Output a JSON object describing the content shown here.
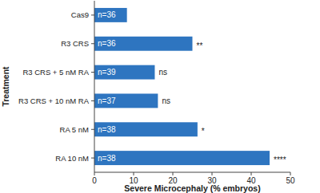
{
  "chart_data": {
    "type": "bar",
    "orientation": "horizontal",
    "x_label": "Severe Microcephaly (% embryos)",
    "y_label": "Treatment",
    "categories": [
      "Cas9",
      "R3 CRS",
      "R3 CRS + 5 nM RA",
      "R3 CRS + 10 nM RA",
      "RA 5 nM",
      "RA 10 nM"
    ],
    "values": [
      8.3,
      25.0,
      15.4,
      16.2,
      26.3,
      44.7
    ],
    "n_labels": [
      "n=36",
      "n=36",
      "n=39",
      "n=37",
      "n=38",
      "n=38"
    ],
    "significance_labels": [
      null,
      "**",
      "ns",
      "ns",
      "*",
      "****"
    ],
    "color": "#2e75c0",
    "xlim": [
      0,
      50
    ],
    "xticks": [
      0,
      10,
      20,
      30,
      40,
      50
    ],
    "grid": false
  }
}
